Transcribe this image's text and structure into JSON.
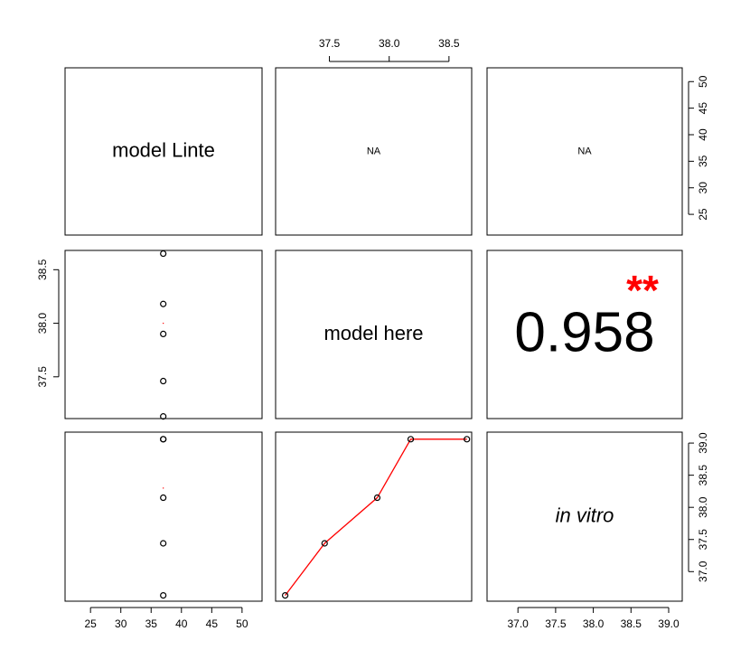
{
  "chart_data": {
    "type": "pairs",
    "variables": [
      {
        "name": "model Linte",
        "values": [
          37,
          37,
          37,
          37,
          37
        ]
      },
      {
        "name": "model here",
        "values": [
          37.13,
          37.46,
          37.9,
          38.18,
          38.65
        ]
      },
      {
        "name": "in vitro",
        "italic": true,
        "values": [
          36.63,
          37.44,
          38.15,
          39.06,
          39.06
        ]
      }
    ],
    "x_axes": [
      {
        "lim": [
          20.8,
          53.3
        ],
        "ticks": [
          25,
          30,
          35,
          40,
          45,
          50
        ]
      },
      {
        "lim": [
          37.05,
          38.69
        ],
        "ticks": [
          37.5,
          {
            "value": 38,
            "label": "38.0"
          },
          38.5
        ]
      },
      {
        "lim": [
          36.59,
          39.18
        ],
        "ticks": [
          {
            "value": 37,
            "label": "37.0"
          },
          37.5,
          {
            "value": 38,
            "label": "38.0"
          },
          38.5,
          {
            "value": 39,
            "label": "39.0"
          }
        ]
      }
    ],
    "y_axes": [
      {
        "lim": [
          21.1,
          52.6
        ],
        "ticks": [
          25,
          30,
          35,
          40,
          45,
          50
        ]
      },
      {
        "lim": [
          37.11,
          38.68
        ],
        "ticks": [
          37.5,
          {
            "value": 38,
            "label": "38.0"
          },
          38.5
        ]
      },
      {
        "lim": [
          36.54,
          39.17
        ],
        "ticks": [
          {
            "value": 37,
            "label": "37.0"
          },
          37.5,
          {
            "value": 38,
            "label": "38.0"
          },
          38.5,
          {
            "value": 39,
            "label": "39.0"
          }
        ]
      }
    ],
    "upper": [
      {
        "text": "NA"
      },
      {
        "text": "NA"
      },
      {
        "value": 0.958,
        "stars": "**"
      }
    ],
    "point_color": "#000000",
    "smooth_color": "#ff0000",
    "smooth_points": [
      38.0,
      38.3
    ]
  }
}
